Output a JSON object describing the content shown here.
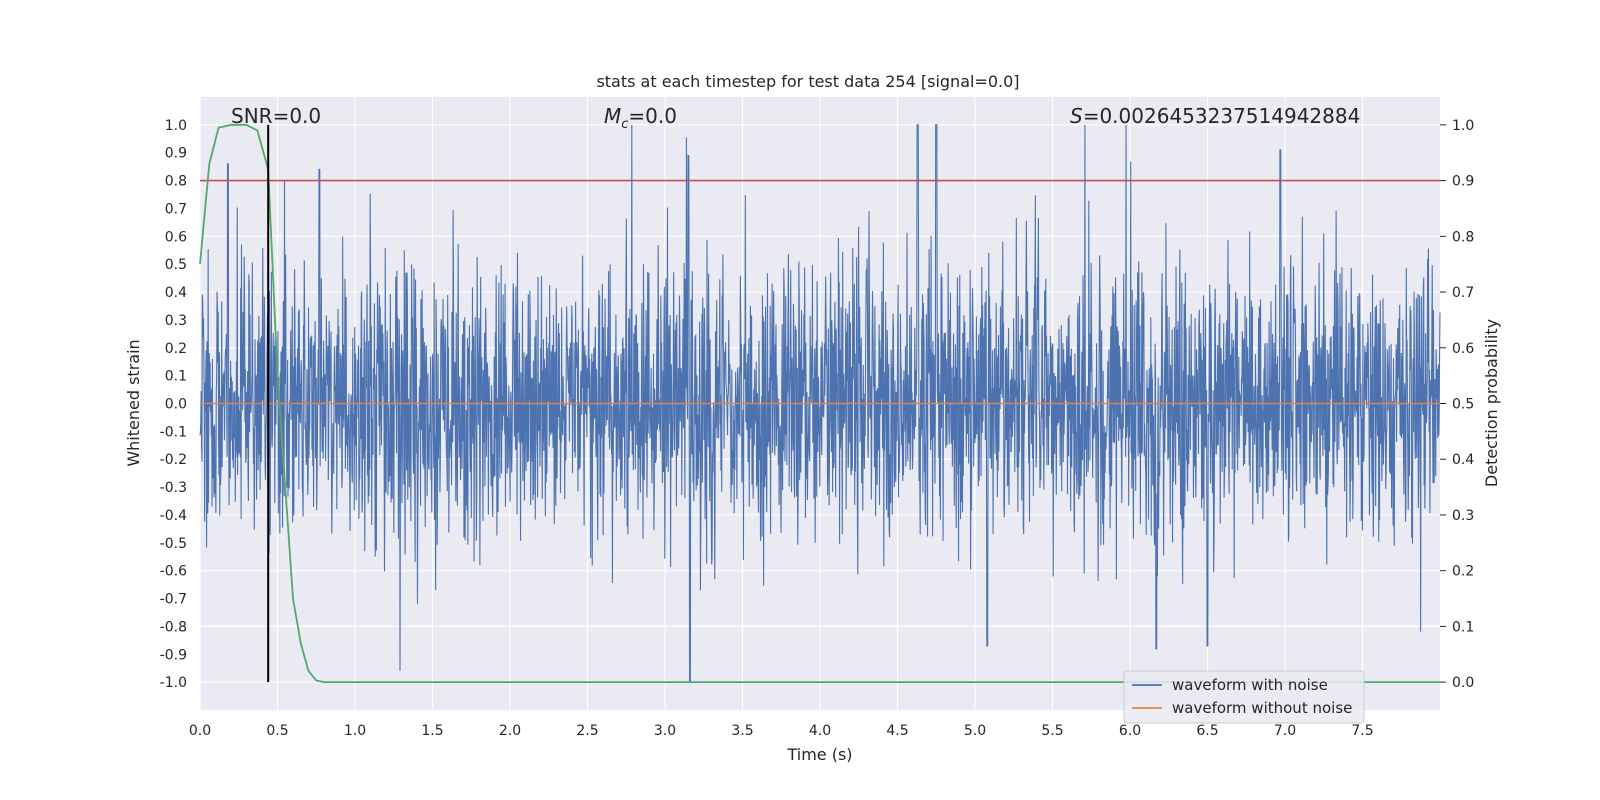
{
  "chart_data": {
    "type": "line",
    "title": "stats at each timestep for test data 254 [signal=0.0]",
    "xlabel": "Time (s)",
    "ylabel_left": "Whitened strain",
    "ylabel_right": "Detection probability",
    "xlim": [
      0.0,
      8.0
    ],
    "ylim_left": [
      -1.1,
      1.1
    ],
    "ylim_right": [
      -0.05,
      1.05
    ],
    "xticks": [
      "0.0",
      "0.5",
      "1.0",
      "1.5",
      "2.0",
      "2.5",
      "3.0",
      "3.5",
      "4.0",
      "4.5",
      "5.0",
      "5.5",
      "6.0",
      "6.5",
      "7.0",
      "7.5"
    ],
    "yticks_left": [
      "1.0",
      "0.9",
      "0.8",
      "0.7",
      "0.6",
      "0.5",
      "0.4",
      "0.3",
      "0.2",
      "0.1",
      "0.0",
      "-0.1",
      "-0.2",
      "-0.3",
      "-0.4",
      "-0.5",
      "-0.6",
      "-0.7",
      "-0.8",
      "-0.9",
      "-1.0"
    ],
    "yticks_right": [
      "1.0",
      "0.9",
      "0.8",
      "0.7",
      "0.6",
      "0.5",
      "0.4",
      "0.3",
      "0.2",
      "0.1",
      "0.0"
    ],
    "annotations": {
      "snr_prefix": "SNR",
      "snr_value": "=0.0",
      "mc_symbol": "M",
      "mc_subscript": "c",
      "mc_value": "=0.0",
      "s_symbol": "S",
      "s_value": "=0.0026453237514942884"
    },
    "threshold": {
      "axis": "right",
      "value": 0.9,
      "color": "#c44e52"
    },
    "marker_line": {
      "x": 0.44,
      "y_from": -1.0,
      "y_to": 1.0,
      "color": "#000000"
    },
    "series": [
      {
        "name": "waveform with noise",
        "axis": "left",
        "color": "#4c72b0",
        "style": "dense noisy trace",
        "sample_rate_hz": 2048,
        "envelope_typical": [
          -0.45,
          0.55
        ],
        "peaks": [
          {
            "x": 0.18,
            "y": 0.86
          },
          {
            "x": 0.77,
            "y": 0.84
          },
          {
            "x": 3.15,
            "y": 0.89
          },
          {
            "x": 3.16,
            "y": -1.0
          },
          {
            "x": 4.63,
            "y": 1.0
          },
          {
            "x": 4.75,
            "y": 1.0
          },
          {
            "x": 6.97,
            "y": 0.91
          },
          {
            "x": 6.17,
            "y": -0.88
          },
          {
            "x": 6.5,
            "y": -0.87
          },
          {
            "x": 5.08,
            "y": -0.87
          }
        ]
      },
      {
        "name": "waveform without noise",
        "axis": "left",
        "color": "#dd8452",
        "x": [
          0.0,
          8.0
        ],
        "y": [
          0.0,
          0.0
        ]
      },
      {
        "name": "detection probability",
        "axis": "right",
        "color": "#55a868",
        "x": [
          0.0,
          0.06,
          0.12,
          0.2,
          0.3,
          0.37,
          0.44,
          0.5,
          0.55,
          0.6,
          0.65,
          0.7,
          0.75,
          0.8,
          1.0,
          2.0,
          3.0,
          4.0,
          5.0,
          6.0,
          7.0,
          8.0
        ],
        "y": [
          0.75,
          0.93,
          0.995,
          1.0,
          1.0,
          0.99,
          0.92,
          0.55,
          0.35,
          0.15,
          0.07,
          0.02,
          0.003,
          0.0,
          0.0,
          0.0,
          0.0,
          0.0,
          0.0,
          0.0,
          0.0,
          0.0
        ]
      }
    ],
    "legend": {
      "placement": "bottom-right",
      "entries": [
        {
          "label": "waveform with noise",
          "color": "#4c72b0"
        },
        {
          "label": "waveform without noise",
          "color": "#dd8452"
        }
      ]
    },
    "grid": true
  }
}
